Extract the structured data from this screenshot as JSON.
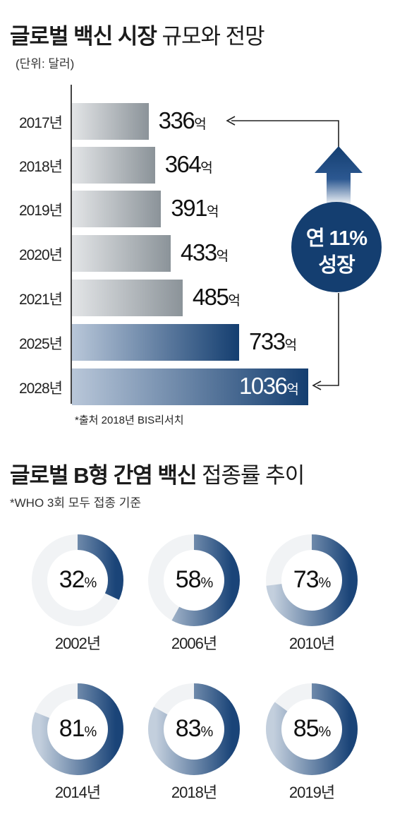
{
  "titles": {
    "market_title_bold": "글로벌 백신 시장",
    "market_title_rest": " 규모와 전망",
    "market_unit": "(단위: 달러)",
    "source": "*출처 2018년 BIS리서치",
    "vacc_title_bold": "글로벌 B형 간염 백신",
    "vacc_title_rest": " 접종률 추이",
    "vacc_note": "*WHO 3회 모두 접종 기준"
  },
  "growth": {
    "line1": "연 11%",
    "line2": "성장"
  },
  "colors": {
    "navy": "#143e70",
    "gray": "#8b9399",
    "track": "#c7d1de"
  },
  "chart_data": [
    {
      "type": "bar",
      "orientation": "horizontal",
      "categories": [
        "2017년",
        "2018년",
        "2019년",
        "2020년",
        "2021년",
        "2025년",
        "2028년"
      ],
      "values": [
        336,
        364,
        391,
        433,
        485,
        733,
        1036
      ],
      "value_labels": [
        "336",
        "364",
        "391",
        "433",
        "485",
        "733",
        "1036"
      ],
      "value_unit": "억",
      "projected": [
        false,
        false,
        false,
        false,
        false,
        true,
        true
      ]
    },
    {
      "type": "pie",
      "style": "donut",
      "categories": [
        "2002년",
        "2006년",
        "2010년",
        "2014년",
        "2018년",
        "2019년"
      ],
      "values": [
        32,
        58,
        73,
        81,
        83,
        85
      ],
      "value_labels": [
        "32",
        "58",
        "73",
        "81",
        "83",
        "85"
      ],
      "value_unit": "%"
    }
  ]
}
